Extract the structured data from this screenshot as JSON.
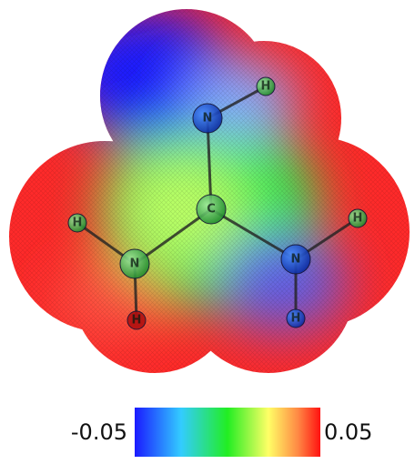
{
  "molecule": {
    "atoms": [
      {
        "label": "N"
      },
      {
        "label": "C"
      },
      {
        "label": "N"
      },
      {
        "label": "N"
      },
      {
        "label": "H"
      },
      {
        "label": "H"
      },
      {
        "label": "H"
      },
      {
        "label": "H"
      },
      {
        "label": "H"
      }
    ]
  },
  "colorbar": {
    "min": -0.05,
    "max": 0.05
  }
}
